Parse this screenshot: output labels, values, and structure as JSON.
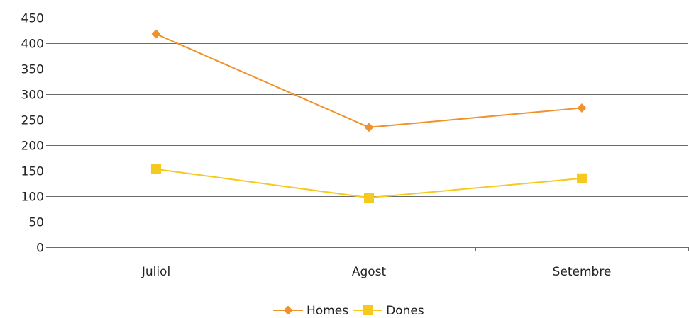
{
  "chart_data": {
    "type": "line",
    "categories": [
      "Juliol",
      "Agost",
      "Setembre"
    ],
    "series": [
      {
        "name": "Homes",
        "values": [
          418,
          235,
          273
        ],
        "color": "#F0922B",
        "marker": "diamond"
      },
      {
        "name": "Dones",
        "values": [
          153,
          97,
          135
        ],
        "color": "#F6C91E",
        "marker": "square"
      }
    ],
    "ylim": [
      0,
      450
    ],
    "yticks": [
      "0",
      "50",
      "100",
      "150",
      "200",
      "250",
      "300",
      "350",
      "400",
      "450"
    ],
    "grid": true,
    "legend_position": "bottom"
  }
}
